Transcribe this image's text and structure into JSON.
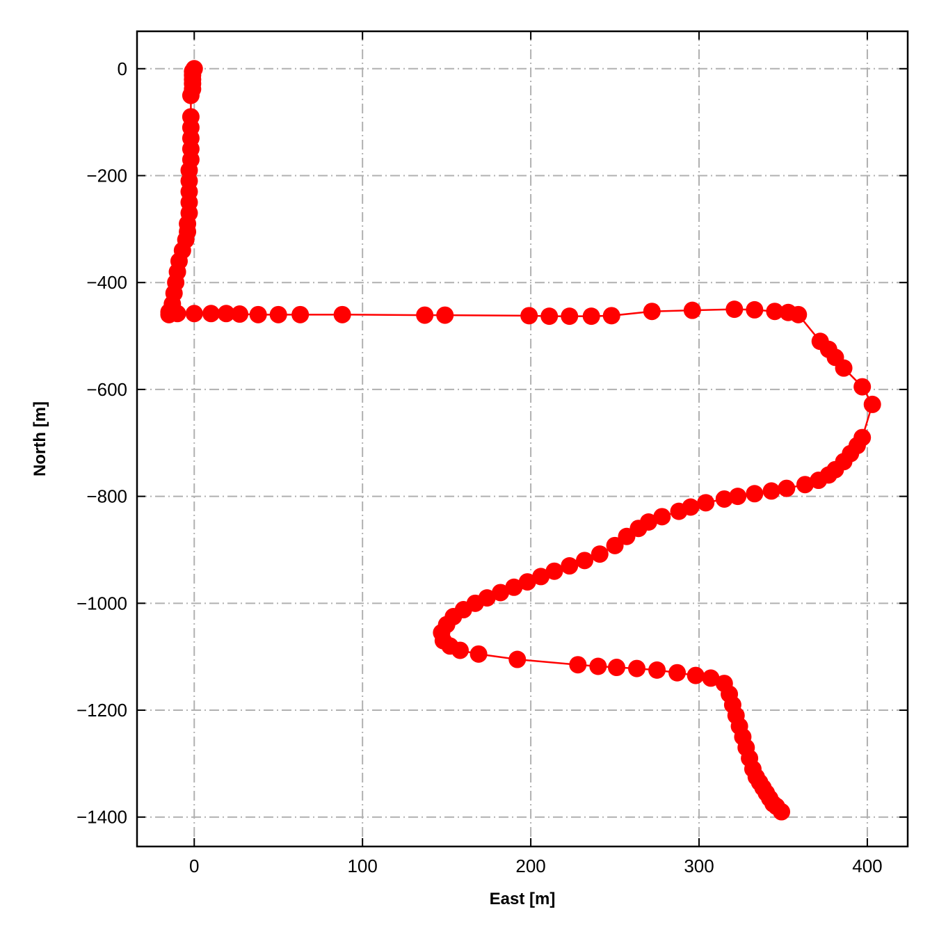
{
  "chart_data": {
    "type": "line",
    "xlabel": "East [m]",
    "ylabel": "North [m]",
    "xlim": [
      -34,
      424
    ],
    "ylim": [
      -1455,
      70
    ],
    "xticks": [
      0,
      100,
      200,
      300,
      400
    ],
    "yticks": [
      0,
      -200,
      -400,
      -600,
      -800,
      -1000,
      -1200,
      -1400
    ],
    "grid": true,
    "grid_style": "dash-dot",
    "colors": {
      "series": "#ff0000",
      "grid": "#b0b0b0",
      "axes": "#000000"
    },
    "series": [
      {
        "marker": "circle",
        "x": [
          0,
          -1,
          -1,
          -1,
          -1,
          -1,
          -2,
          -2,
          -2,
          -2,
          -2,
          -2,
          -3,
          -3,
          -3,
          -3,
          -3,
          -4,
          -4,
          -5,
          -7,
          -9,
          -10,
          -11,
          -12,
          -13,
          -14,
          -15,
          -15,
          -10,
          0,
          10,
          19,
          27,
          38,
          50,
          63,
          88,
          137,
          149,
          199,
          211,
          223,
          236,
          248,
          272,
          296,
          321,
          333,
          345,
          353,
          359,
          372,
          377,
          381,
          386,
          397,
          403,
          397,
          394,
          390,
          386,
          381,
          377,
          371,
          363,
          352,
          343,
          333,
          323,
          315,
          304,
          295,
          288,
          278,
          270,
          264,
          257,
          250,
          241,
          232,
          223,
          214,
          206,
          198,
          190,
          182,
          174,
          167,
          160,
          154,
          150,
          147,
          148,
          152,
          158,
          169,
          192,
          228,
          240,
          251,
          263,
          275,
          287,
          298,
          307,
          315,
          318,
          320,
          322,
          324,
          326,
          328,
          330,
          332,
          334,
          336,
          338,
          340,
          342,
          344,
          346,
          349
        ],
        "y": [
          0,
          -5,
          -12,
          -20,
          -28,
          -38,
          -50,
          -90,
          -110,
          -130,
          -150,
          -170,
          -190,
          -210,
          -230,
          -250,
          -270,
          -290,
          -305,
          -320,
          -340,
          -360,
          -380,
          -400,
          -420,
          -440,
          -455,
          -460,
          -455,
          -458,
          -458,
          -458,
          -458,
          -459,
          -460,
          -460,
          -460,
          -460,
          -461,
          -461,
          -462,
          -463,
          -463,
          -463,
          -462,
          -454,
          -452,
          -450,
          -451,
          -454,
          -456,
          -460,
          -510,
          -525,
          -540,
          -560,
          -595,
          -628,
          -690,
          -705,
          -720,
          -735,
          -750,
          -760,
          -770,
          -778,
          -785,
          -790,
          -795,
          -800,
          -805,
          -812,
          -820,
          -828,
          -838,
          -848,
          -860,
          -875,
          -892,
          -908,
          -920,
          -930,
          -940,
          -950,
          -960,
          -970,
          -980,
          -990,
          -1000,
          -1012,
          -1025,
          -1040,
          -1055,
          -1070,
          -1080,
          -1088,
          -1095,
          -1105,
          -1115,
          -1118,
          -1120,
          -1122,
          -1125,
          -1130,
          -1135,
          -1140,
          -1150,
          -1170,
          -1190,
          -1210,
          -1230,
          -1250,
          -1270,
          -1290,
          -1310,
          -1325,
          -1335,
          -1345,
          -1355,
          -1365,
          -1375,
          -1380,
          -1390
        ]
      }
    ]
  }
}
